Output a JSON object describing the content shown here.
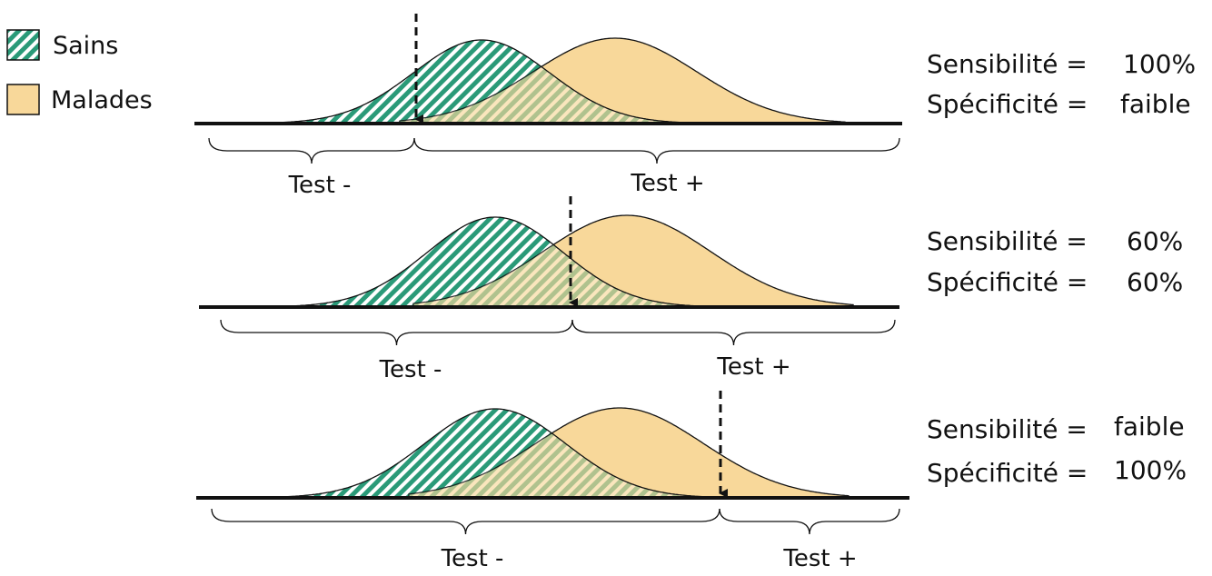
{
  "colors": {
    "sains_fill": "#2a9a78",
    "sains_stripe_bg": "#ffffff",
    "malades_fill": "#f8d89a",
    "outline": "#111111"
  },
  "legend": {
    "sains_label": "Sains",
    "malades_label": "Malades"
  },
  "panels": [
    {
      "test_neg": "Test -",
      "test_pos": "Test +",
      "sens_label": "Sensibilité =",
      "sens_value": "100%",
      "spec_label": "Spécificité =",
      "spec_value": "faible"
    },
    {
      "test_neg": "Test -",
      "test_pos": "Test +",
      "sens_label": "Sensibilité =",
      "sens_value": "60%",
      "spec_label": "Spécificité =",
      "spec_value": "60%"
    },
    {
      "test_neg": "Test -",
      "test_pos": "Test +",
      "sens_label": "Sensibilité =",
      "sens_value": "faible",
      "spec_label": "Spécificité =",
      "spec_value": "100%"
    }
  ]
}
